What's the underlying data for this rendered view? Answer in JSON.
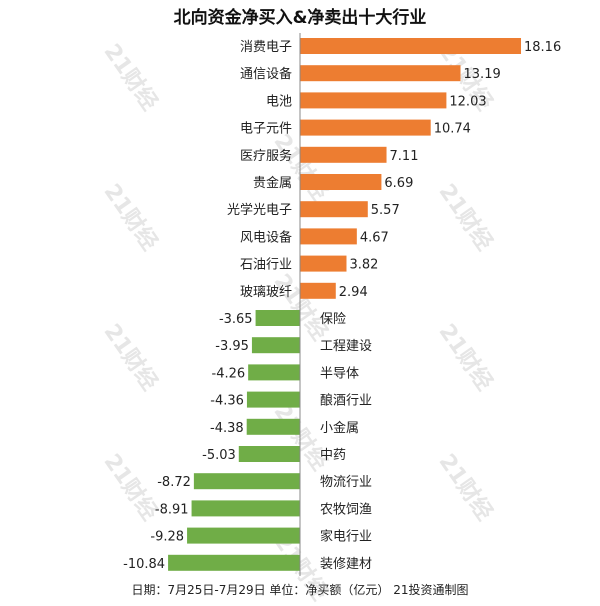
{
  "chart_data": {
    "type": "bar",
    "orientation": "horizontal",
    "title": "北向资金净买入&净卖出十大行业",
    "categories": [
      "消费电子",
      "通信设备",
      "电池",
      "电子元件",
      "医疗服务",
      "贵金属",
      "光学光电子",
      "风电设备",
      "石油行业",
      "玻璃玻纤",
      "保险",
      "工程建设",
      "半导体",
      "酿酒行业",
      "小金属",
      "中药",
      "物流行业",
      "农牧饲渔",
      "家电行业",
      "装修建材"
    ],
    "values": [
      18.16,
      13.19,
      12.03,
      10.74,
      7.11,
      6.69,
      5.57,
      4.67,
      3.82,
      2.94,
      -3.65,
      -3.95,
      -4.26,
      -4.36,
      -4.38,
      -5.03,
      -8.72,
      -8.91,
      -9.28,
      -10.84
    ],
    "value_labels": [
      "18.16",
      "13.19",
      "12.03",
      "10.74",
      "7.11",
      "6.69",
      "5.57",
      "4.67",
      "3.82",
      "2.94",
      "-3.65",
      "-3.95",
      "-4.26",
      "-4.36",
      "-4.38",
      "-5.03",
      "-8.72",
      "-8.91",
      "-9.28",
      "-10.84"
    ],
    "xlim": [
      -10.84,
      18.16
    ],
    "grid": false,
    "colors": {
      "positive": "#ed7d31",
      "negative": "#70ad47"
    },
    "footer": "日期：7月25日-7月29日 单位：净买额（亿元） 21投资通制图",
    "watermark": "21财经"
  }
}
